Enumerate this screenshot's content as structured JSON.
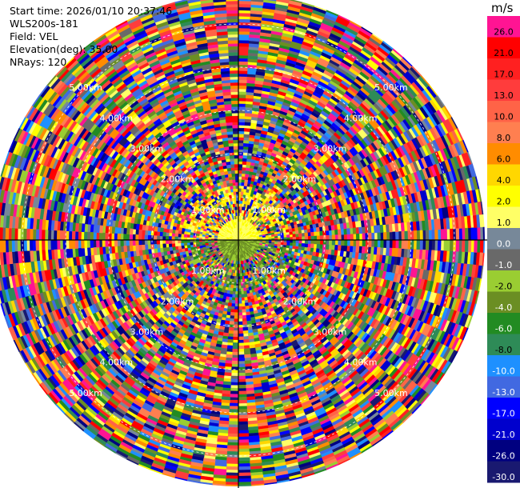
{
  "info": {
    "start_time": "Start time: 2026/01/10 20:37:46",
    "instrument": "WLS200s-181",
    "field": "Field: VEL",
    "elevation": "Elevation(deg): 35.00",
    "nrays": "NRays: 120"
  },
  "colorbar": {
    "unit": "m/s",
    "entries": [
      {
        "label": "26.0",
        "color": "#ff1493"
      },
      {
        "label": "21.0",
        "color": "#ff0000"
      },
      {
        "label": "17.0",
        "color": "#ff2020"
      },
      {
        "label": "13.0",
        "color": "#ff3c3c"
      },
      {
        "label": "10.0",
        "color": "#ff6347"
      },
      {
        "label": "8.0",
        "color": "#ff7f50"
      },
      {
        "label": "6.0",
        "color": "#ff8c00"
      },
      {
        "label": "4.0",
        "color": "#ffd700"
      },
      {
        "label": "2.0",
        "color": "#ffff00"
      },
      {
        "label": "1.0",
        "color": "#ffff66"
      },
      {
        "label": "0.0",
        "color": "#778899"
      },
      {
        "label": "-1.0",
        "color": "#696969"
      },
      {
        "label": "-2.0",
        "color": "#9acd32"
      },
      {
        "label": "-4.0",
        "color": "#6b8e23"
      },
      {
        "label": "-6.0",
        "color": "#228b22"
      },
      {
        "label": "-8.0",
        "color": "#2e8b57"
      },
      {
        "label": "-10.0",
        "color": "#1e90ff"
      },
      {
        "label": "-13.0",
        "color": "#4169e1"
      },
      {
        "label": "-17.0",
        "color": "#0000ff"
      },
      {
        "label": "-21.0",
        "color": "#0000cd"
      },
      {
        "label": "-26.0",
        "color": "#000080"
      },
      {
        "label": "-30.0",
        "color": "#191970"
      }
    ]
  },
  "chart_data": {
    "type": "heatmap",
    "projection": "polar PPI",
    "field": "VEL",
    "elevation_deg": 35.0,
    "nrays": 120,
    "range_rings_km": [
      1.0,
      2.0,
      3.0,
      4.0,
      5.0
    ],
    "ring_labels": [
      "1.00km",
      "2.00km",
      "3.00km",
      "4.00km",
      "5.00km"
    ],
    "max_range_km": 5.7,
    "vmin": -30.0,
    "vmax": 26.0,
    "note_values": "Near-origin gates mostly 0 to 2 m/s (yellow) to the north and -1 to -4 m/s (olive) to the south; beyond ~1 km the field is noise spanning the full -30 to 26 m/s scale."
  }
}
